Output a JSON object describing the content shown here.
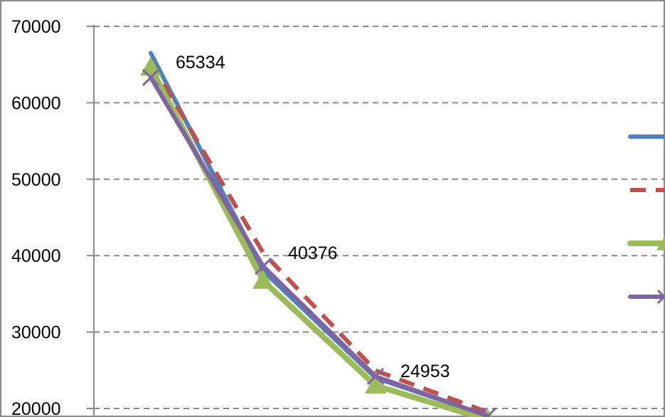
{
  "chart_data": {
    "type": "line",
    "title": "",
    "xlabel": "",
    "ylabel": "",
    "ylim": [
      20000,
      70000
    ],
    "yticks": [
      20000,
      30000,
      40000,
      50000,
      60000,
      70000
    ],
    "grid": true,
    "legend_position": "right",
    "x": [
      1,
      2,
      3,
      4
    ],
    "series": [
      {
        "color": "#4f81bd",
        "style": "solid",
        "marker": "none",
        "values": [
          66500,
          38000,
          24000,
          19000
        ]
      },
      {
        "color": "#c0504d",
        "style": "dashed",
        "marker": "none",
        "values": [
          65334,
          40376,
          24953,
          19500
        ]
      },
      {
        "color": "#9bbb59",
        "style": "solid",
        "marker": "triangle",
        "values": [
          64600,
          36700,
          23000,
          18500
        ]
      },
      {
        "color": "#8064a2",
        "style": "solid",
        "marker": "x",
        "values": [
          63300,
          38600,
          24200,
          19000
        ]
      }
    ],
    "data_labels": [
      {
        "x": 1,
        "y": 65334,
        "text": "65334"
      },
      {
        "x": 2,
        "y": 40376,
        "text": "40376"
      },
      {
        "x": 3,
        "y": 24953,
        "text": "24953"
      }
    ]
  }
}
